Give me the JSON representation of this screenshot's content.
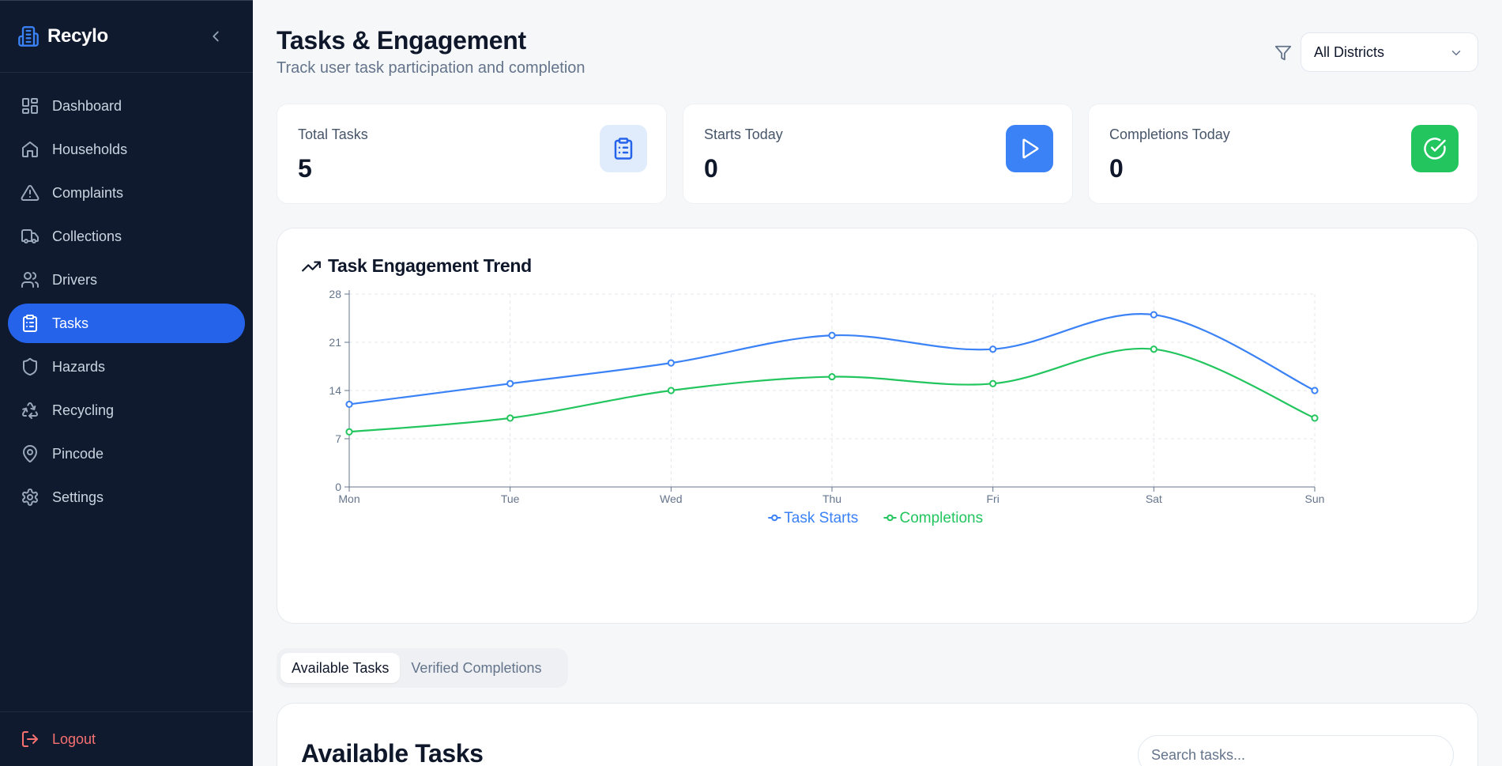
{
  "app": {
    "name": "Recylo"
  },
  "sidebar": {
    "items": [
      {
        "label": "Dashboard",
        "icon": "dashboard-icon",
        "active": false
      },
      {
        "label": "Households",
        "icon": "home-icon",
        "active": false
      },
      {
        "label": "Complaints",
        "icon": "alert-triangle-icon",
        "active": false
      },
      {
        "label": "Collections",
        "icon": "truck-icon",
        "active": false
      },
      {
        "label": "Drivers",
        "icon": "users-icon",
        "active": false
      },
      {
        "label": "Tasks",
        "icon": "clipboard-list-icon",
        "active": true
      },
      {
        "label": "Hazards",
        "icon": "shield-icon",
        "active": false
      },
      {
        "label": "Recycling",
        "icon": "recycle-icon",
        "active": false
      },
      {
        "label": "Pincode",
        "icon": "map-pin-icon",
        "active": false
      },
      {
        "label": "Settings",
        "icon": "gear-icon",
        "active": false
      }
    ],
    "logout_label": "Logout"
  },
  "header": {
    "title": "Tasks & Engagement",
    "subtitle": "Track user task participation and completion",
    "district_filter": "All Districts"
  },
  "stats": [
    {
      "label": "Total Tasks",
      "value": "5",
      "icon": "clipboard-list-icon",
      "icon_bg": "#e0ecfb",
      "icon_color": "#2563eb"
    },
    {
      "label": "Starts Today",
      "value": "0",
      "icon": "play-icon",
      "icon_bg": "#3b82f6",
      "icon_color": "#ffffff"
    },
    {
      "label": "Completions Today",
      "value": "0",
      "icon": "check-circle-icon",
      "icon_bg": "#22c55e",
      "icon_color": "#ffffff"
    }
  ],
  "chart": {
    "title": "Task Engagement Trend"
  },
  "chart_data": {
    "type": "line",
    "x": [
      "Mon",
      "Tue",
      "Wed",
      "Thu",
      "Fri",
      "Sat",
      "Sun"
    ],
    "series": [
      {
        "name": "Task Starts",
        "color": "#3b82f6",
        "values": [
          12,
          15,
          18,
          22,
          20,
          25,
          14
        ]
      },
      {
        "name": "Completions",
        "color": "#22c55e",
        "values": [
          8,
          10,
          14,
          16,
          15,
          20,
          10
        ]
      }
    ],
    "ylim": [
      0,
      28
    ],
    "yticks": [
      0,
      7,
      14,
      21,
      28
    ],
    "grid": true,
    "legend": "bottom-center",
    "smooth": true
  },
  "tabs": [
    {
      "label": "Available Tasks",
      "active": true
    },
    {
      "label": "Verified Completions",
      "active": false
    }
  ],
  "available_tasks": {
    "title": "Available Tasks",
    "search_placeholder": "Search tasks..."
  },
  "colors": {
    "accent": "#2563eb",
    "sidebar_bg": "#0f1a2e",
    "logout": "#f87171"
  }
}
